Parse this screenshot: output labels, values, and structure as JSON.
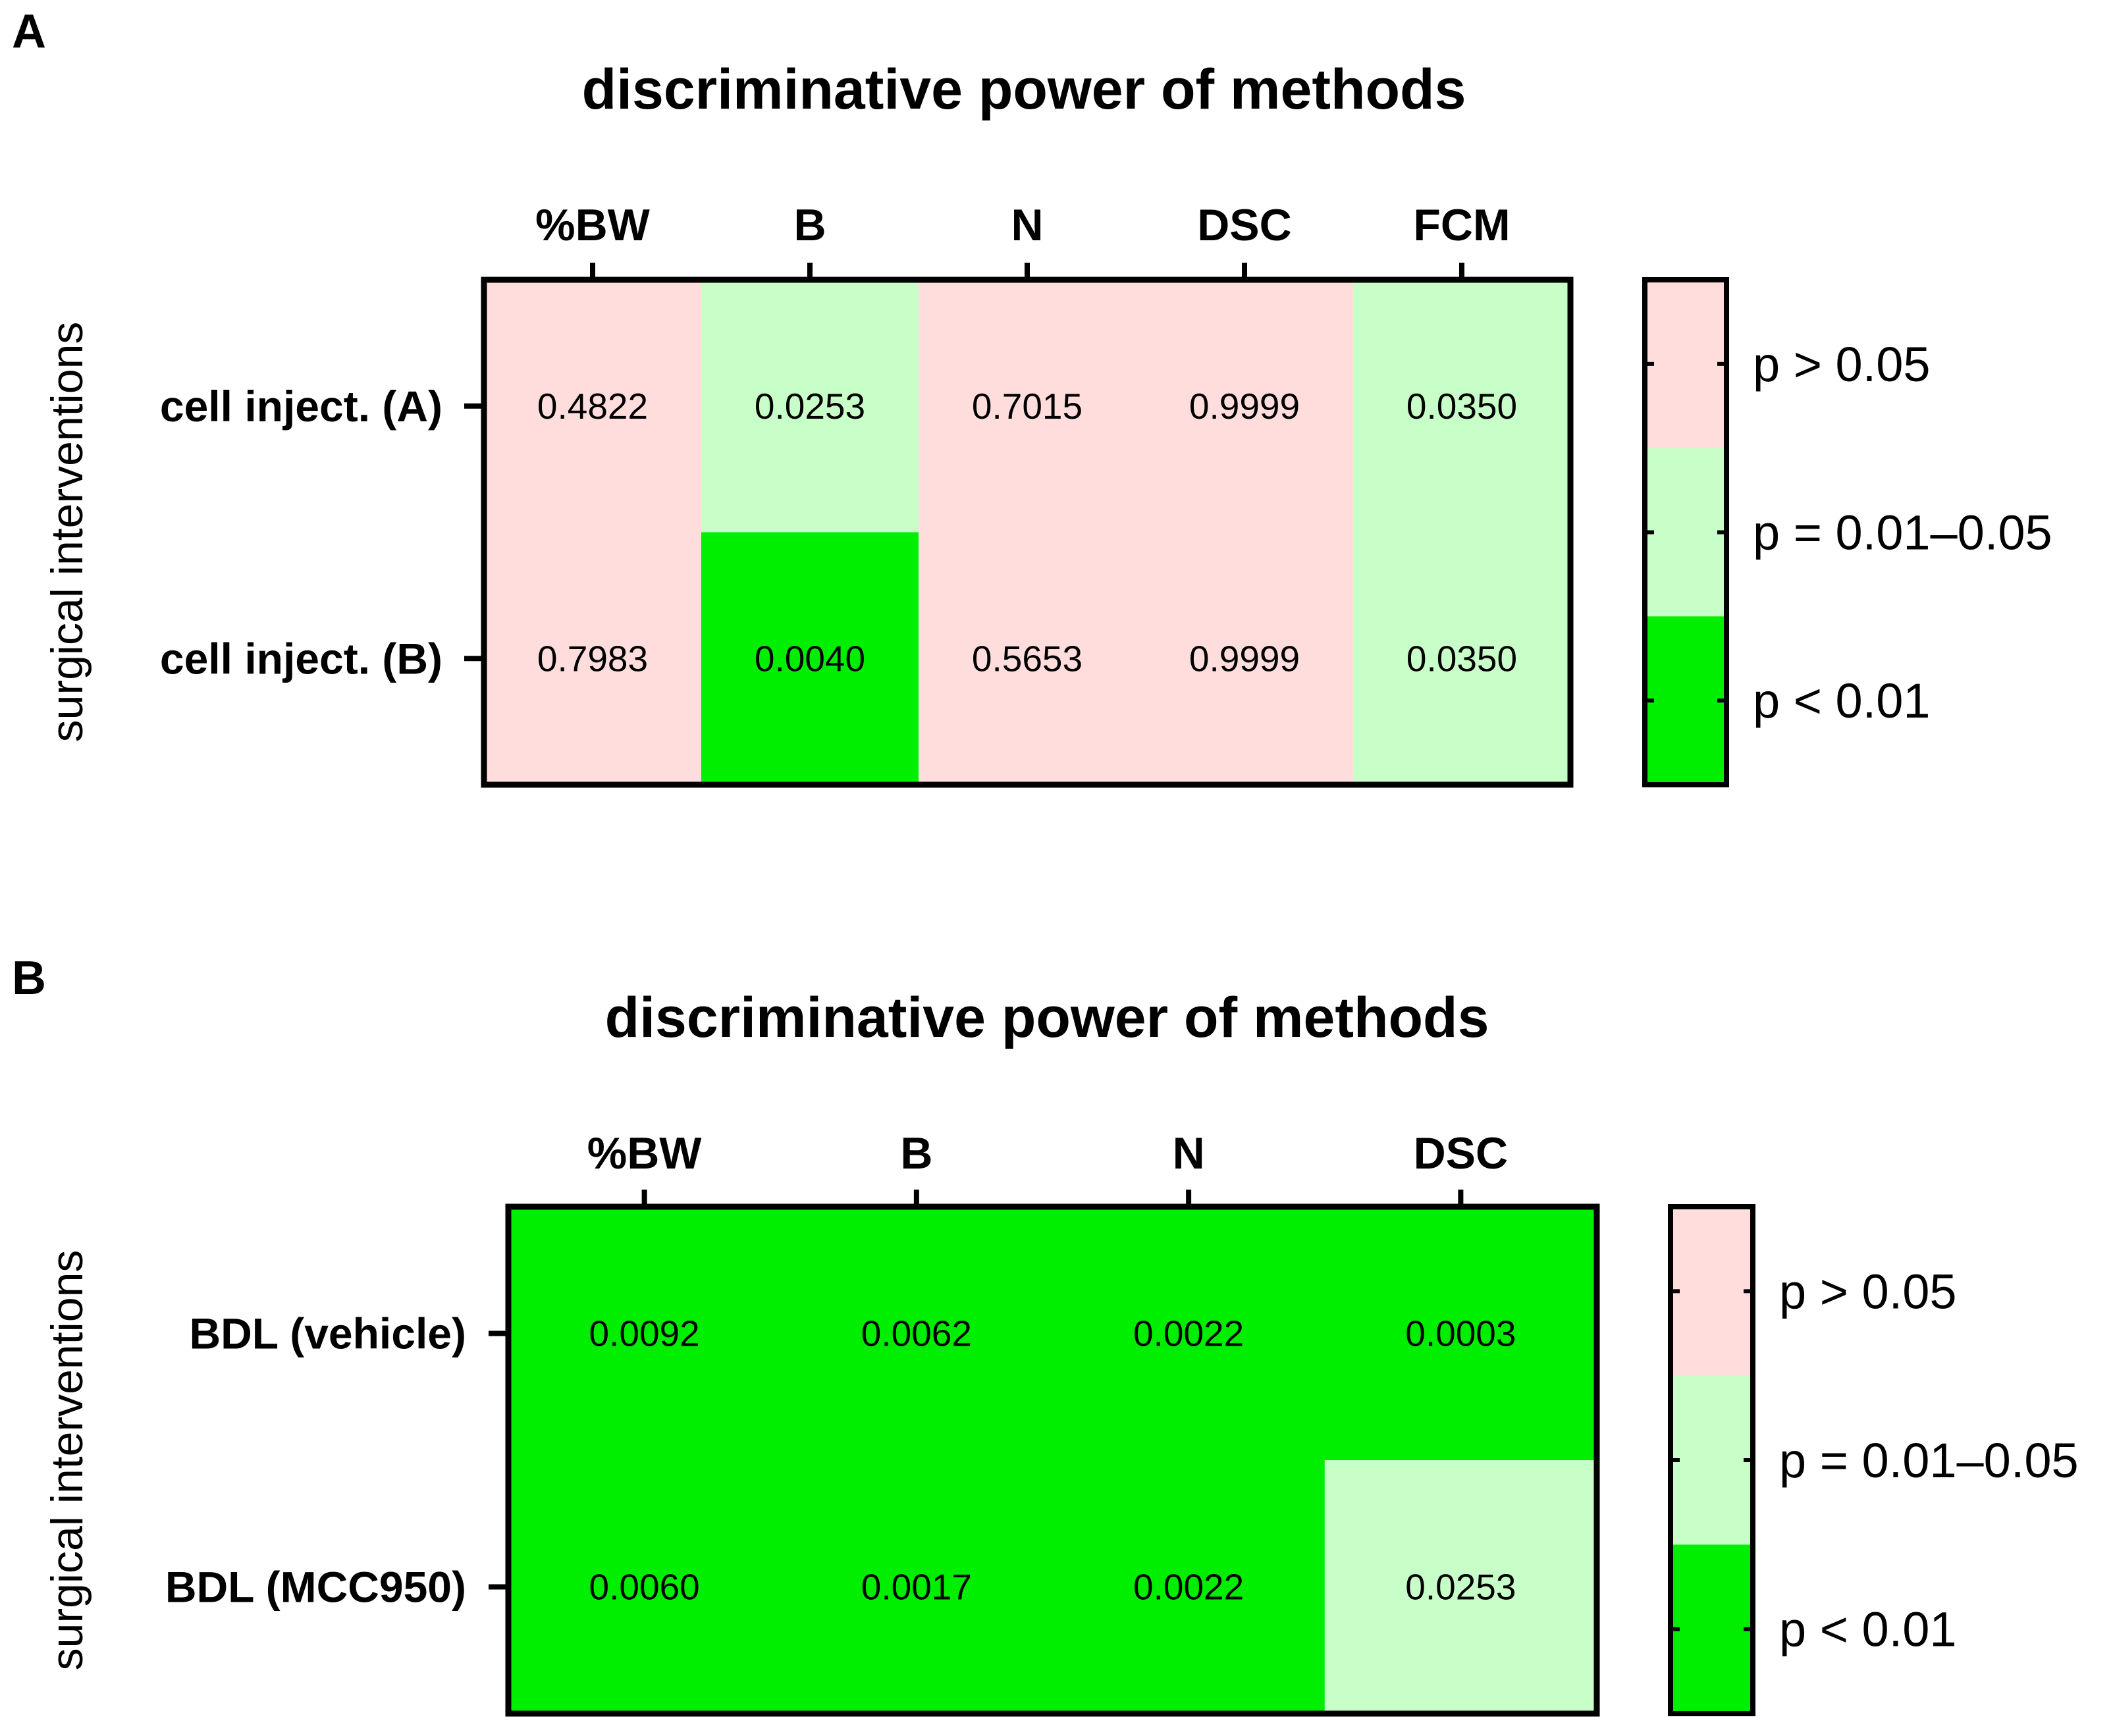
{
  "colors": {
    "high": "#ffdddd",
    "mid": "#c8ffc8",
    "low": "#00ee00",
    "frame": "#000000"
  },
  "chart_data": [
    {
      "type": "heatmap",
      "panel": "A",
      "title": "discriminative power of methods",
      "ylabel": "surgical interventions",
      "columns": [
        "%BW",
        "B",
        "N",
        "DSC",
        "FCM"
      ],
      "rows": [
        "cell inject. (A)",
        "cell inject. (B)"
      ],
      "values": [
        [
          "0.4822",
          "0.0253",
          "0.7015",
          "0.9999",
          "0.0350"
        ],
        [
          "0.7983",
          "0.0040",
          "0.5653",
          "0.9999",
          "0.0350"
        ]
      ],
      "legend": [
        "p > 0.05",
        "p = 0.01–0.05",
        "p < 0.01"
      ]
    },
    {
      "type": "heatmap",
      "panel": "B",
      "title": "discriminative power of methods",
      "ylabel": "surgical interventions",
      "columns": [
        "%BW",
        "B",
        "N",
        "DSC"
      ],
      "rows": [
        "BDL (vehicle)",
        "BDL (MCC950)"
      ],
      "values": [
        [
          "0.0092",
          "0.0062",
          "0.0022",
          "0.0003"
        ],
        [
          "0.0060",
          "0.0017",
          "0.0022",
          "0.0253"
        ]
      ],
      "legend": [
        "p > 0.05",
        "p = 0.01–0.05",
        "p < 0.01"
      ]
    }
  ]
}
